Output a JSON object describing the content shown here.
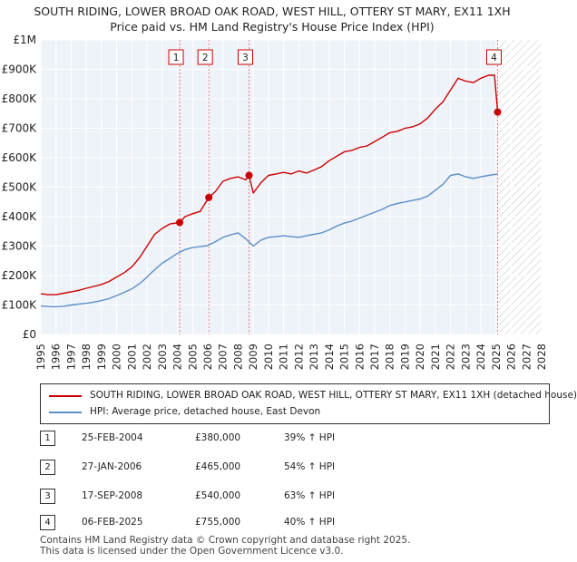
{
  "chart_data": {
    "type": "line",
    "title": "SOUTH RIDING, LOWER BROAD OAK ROAD, WEST HILL, OTTERY ST MARY, EX11 1XH",
    "subtitle": "Price paid vs. HM Land Registry's House Price Index (HPI)",
    "xlabel": "",
    "ylabel": "",
    "xlim": [
      1995,
      2028
    ],
    "ylim": [
      0,
      1000000
    ],
    "x_ticks": [
      1995,
      1996,
      1997,
      1998,
      1999,
      2000,
      2001,
      2002,
      2003,
      2004,
      2005,
      2006,
      2007,
      2008,
      2009,
      2010,
      2011,
      2012,
      2013,
      2014,
      2015,
      2016,
      2017,
      2018,
      2019,
      2020,
      2021,
      2022,
      2023,
      2024,
      2025,
      2026,
      2027,
      2028
    ],
    "y_ticks": [
      {
        "value": 0,
        "label": "£0"
      },
      {
        "value": 100000,
        "label": "£100K"
      },
      {
        "value": 200000,
        "label": "£200K"
      },
      {
        "value": 300000,
        "label": "£300K"
      },
      {
        "value": 400000,
        "label": "£400K"
      },
      {
        "value": 500000,
        "label": "£500K"
      },
      {
        "value": 600000,
        "label": "£600K"
      },
      {
        "value": 700000,
        "label": "£700K"
      },
      {
        "value": 800000,
        "label": "£800K"
      },
      {
        "value": 900000,
        "label": "£900K"
      },
      {
        "value": 1000000,
        "label": "£1M"
      }
    ],
    "grid": true,
    "future_hatch_from": 2025.1,
    "series": [
      {
        "name": "SOUTH RIDING, LOWER BROAD OAK ROAD, WEST HILL, OTTERY ST MARY, EX11 1XH (detached house)",
        "color": "#cc0000",
        "x": [
          1995,
          1995.5,
          1996,
          1996.5,
          1997,
          1997.5,
          1998,
          1998.5,
          1999,
          1999.5,
          2000,
          2000.5,
          2001,
          2001.5,
          2002,
          2002.5,
          2003,
          2003.5,
          2004.15,
          2004.5,
          2005,
          2005.5,
          2006.07,
          2006.5,
          2007,
          2007.5,
          2008,
          2008.5,
          2008.72,
          2009,
          2009.5,
          2010,
          2010.5,
          2011,
          2011.5,
          2012,
          2012.5,
          2013,
          2013.5,
          2014,
          2014.5,
          2015,
          2015.5,
          2016,
          2016.5,
          2017,
          2017.5,
          2018,
          2018.5,
          2019,
          2019.5,
          2020,
          2020.5,
          2021,
          2021.5,
          2022,
          2022.5,
          2023,
          2023.5,
          2024,
          2024.5,
          2024.9,
          2025.1
        ],
        "values": [
          138000,
          135000,
          135000,
          140000,
          145000,
          150000,
          157000,
          163000,
          170000,
          180000,
          195000,
          210000,
          230000,
          260000,
          300000,
          340000,
          360000,
          375000,
          380000,
          400000,
          410000,
          418000,
          465000,
          485000,
          520000,
          530000,
          535000,
          525000,
          540000,
          480000,
          515000,
          540000,
          545000,
          550000,
          545000,
          555000,
          548000,
          558000,
          570000,
          590000,
          605000,
          620000,
          625000,
          635000,
          640000,
          655000,
          670000,
          685000,
          690000,
          700000,
          705000,
          715000,
          735000,
          765000,
          790000,
          830000,
          870000,
          860000,
          855000,
          870000,
          880000,
          880000,
          755000
        ]
      },
      {
        "name": "HPI: Average price, detached house, East Devon",
        "color": "#5b8fc9",
        "x": [
          1995,
          1995.5,
          1996,
          1996.5,
          1997,
          1997.5,
          1998,
          1998.5,
          1999,
          1999.5,
          2000,
          2000.5,
          2001,
          2001.5,
          2002,
          2002.5,
          2003,
          2003.5,
          2004,
          2004.5,
          2005,
          2005.5,
          2006,
          2006.5,
          2007,
          2007.5,
          2008,
          2008.5,
          2009,
          2009.5,
          2010,
          2010.5,
          2011,
          2011.5,
          2012,
          2012.5,
          2013,
          2013.5,
          2014,
          2014.5,
          2015,
          2015.5,
          2016,
          2016.5,
          2017,
          2017.5,
          2018,
          2018.5,
          2019,
          2019.5,
          2020,
          2020.5,
          2021,
          2021.5,
          2022,
          2022.5,
          2023,
          2023.5,
          2024,
          2024.5,
          2025.1
        ],
        "values": [
          97000,
          95000,
          94000,
          96000,
          100000,
          103000,
          106000,
          110000,
          115000,
          122000,
          132000,
          143000,
          155000,
          172000,
          195000,
          220000,
          242000,
          258000,
          275000,
          288000,
          295000,
          298000,
          302000,
          315000,
          330000,
          338000,
          345000,
          325000,
          300000,
          320000,
          330000,
          332000,
          335000,
          332000,
          330000,
          335000,
          340000,
          345000,
          355000,
          368000,
          378000,
          385000,
          395000,
          405000,
          415000,
          425000,
          438000,
          445000,
          450000,
          455000,
          460000,
          470000,
          490000,
          510000,
          540000,
          545000,
          535000,
          530000,
          535000,
          540000,
          545000
        ]
      }
    ],
    "sales": [
      {
        "id": "1",
        "x": 2004.15,
        "value": 380000,
        "date": "25-FEB-2004",
        "price": "£380,000",
        "hpi": "39% ↑ HPI"
      },
      {
        "id": "2",
        "x": 2006.07,
        "value": 465000,
        "date": "27-JAN-2006",
        "price": "£465,000",
        "hpi": "54% ↑ HPI"
      },
      {
        "id": "3",
        "x": 2008.72,
        "value": 540000,
        "date": "17-SEP-2008",
        "price": "£540,000",
        "hpi": "63% ↑ HPI"
      },
      {
        "id": "4",
        "x": 2025.1,
        "value": 755000,
        "date": "06-FEB-2025",
        "price": "£755,000",
        "hpi": "40% ↑ HPI"
      }
    ]
  },
  "legend": {
    "red_label": "SOUTH RIDING, LOWER BROAD OAK ROAD, WEST HILL, OTTERY ST MARY, EX11 1XH (detached house)",
    "blue_label": "HPI: Average price, detached house, East Devon"
  },
  "footer": {
    "line1": "Contains HM Land Registry data © Crown copyright and database right 2025.",
    "line2": "This data is licensed under the Open Government Licence v3.0."
  },
  "colors": {
    "property_line": "#cc0000",
    "hpi_line": "#5b8fc9",
    "plot_bg": "#eef2f9",
    "sale_marker_line": "#e08080"
  }
}
